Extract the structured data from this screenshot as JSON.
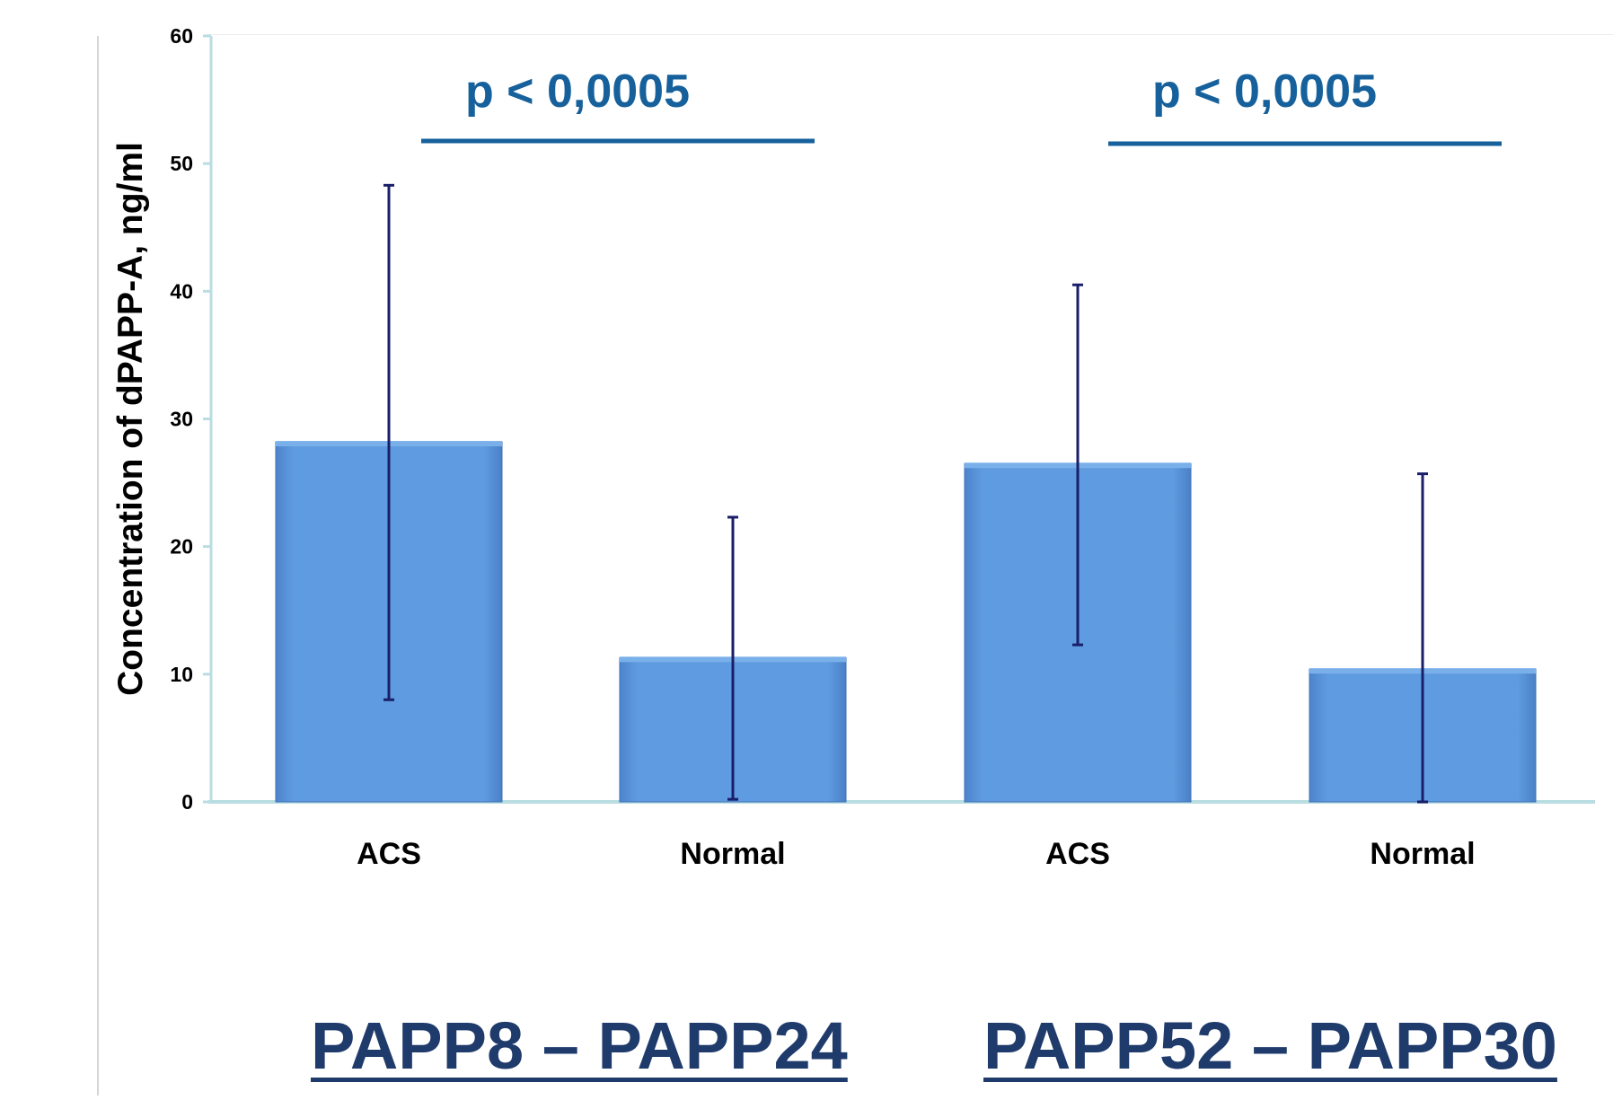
{
  "chart_data": {
    "type": "bar",
    "ylabel": "Concentration of dPAPP-A, ng/ml",
    "xlabel": "",
    "ylim": [
      0,
      60
    ],
    "yticks": [
      0,
      10,
      20,
      30,
      40,
      50,
      60
    ],
    "grid": false,
    "legend": "none",
    "bar_color": "#5f9be0",
    "errorbar_color": "#1a1f6a",
    "axis_color": "#b9dde1",
    "annotation_color": "#16609b",
    "groups": [
      {
        "title": "PAPP8 – PAPP24",
        "significance": "p < 0,0005",
        "bars": [
          {
            "category": "ACS",
            "value": 28.2,
            "err_low": 8.0,
            "err_high": 48.3
          },
          {
            "category": "Normal",
            "value": 11.3,
            "err_low": 0.2,
            "err_high": 22.3
          }
        ]
      },
      {
        "title": "PAPP52 – PAPP30",
        "significance": "p < 0,0005",
        "bars": [
          {
            "category": "ACS",
            "value": 26.5,
            "err_low": 12.3,
            "err_high": 40.5
          },
          {
            "category": "Normal",
            "value": 10.4,
            "err_low": 0.0,
            "err_high": 25.7
          }
        ]
      }
    ]
  },
  "title_color": "#1f3b6b"
}
